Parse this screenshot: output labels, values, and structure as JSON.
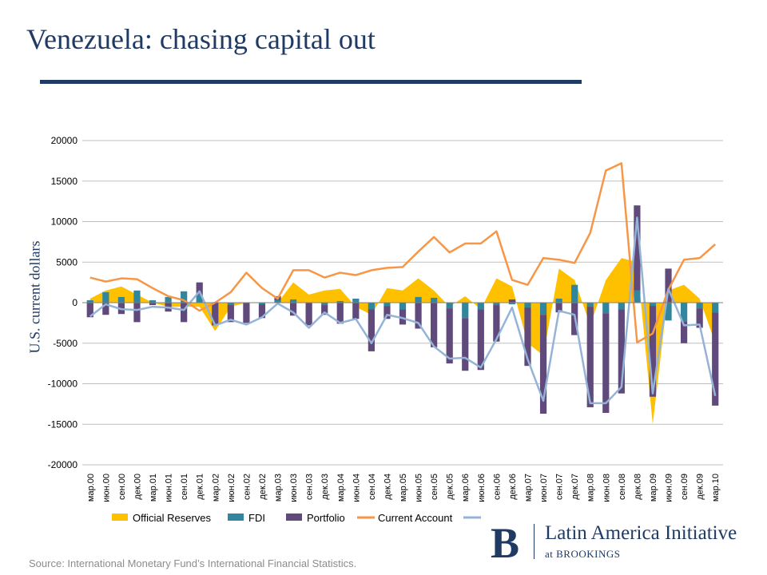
{
  "slide": {
    "title": "Venezuela: chasing capital out",
    "source": "Source: International Monetary Fund’s International Financial Statistics."
  },
  "logo": {
    "mark": "B",
    "name": "Latin America Initiative",
    "sub": "at BROOKINGS"
  },
  "colors": {
    "official_reserves": "#ffc000",
    "fdi": "#31859c",
    "portfolio": "#604a7b",
    "current_account": "#f79646",
    "capital_account": "#95b3d7",
    "title": "#1f3a63"
  },
  "chart_data": {
    "type": "bar",
    "ylabel": "U.S. current dollars",
    "ylim": [
      -20000,
      20000
    ],
    "yticks": [
      20000,
      15000,
      10000,
      5000,
      0,
      -5000,
      -10000,
      -15000,
      -20000
    ],
    "grid": true,
    "legend_position": "bottom",
    "categories": [
      "мар.00",
      "июн.00",
      "сен.00",
      "дек.00",
      "мар.01",
      "июн.01",
      "сен.01",
      "дек.01",
      "мар.02",
      "июн.02",
      "сен.02",
      "дек.02",
      "мар.03",
      "июн.03",
      "сен.03",
      "дек.03",
      "мар.04",
      "июн.04",
      "сен.04",
      "дек.04",
      "мар.05",
      "июн.05",
      "сен.05",
      "дек.05",
      "мар.06",
      "июн.06",
      "сен.06",
      "дек.06",
      "мар.07",
      "июн.07",
      "сен.07",
      "дек.07",
      "мар.08",
      "июн.08",
      "сен.08",
      "дек.08",
      "мар.09",
      "июн.09",
      "сен.09",
      "дек.09",
      "мар.10"
    ],
    "series": [
      {
        "name": "Official Reserves",
        "type": "area",
        "values": [
          500,
          1500,
          2000,
          1000,
          0,
          -500,
          -500,
          -500,
          -3500,
          -500,
          0,
          0,
          0,
          2500,
          1000,
          1500,
          1700,
          -500,
          -1500,
          1800,
          1500,
          3000,
          1500,
          -500,
          800,
          -800,
          3000,
          2000,
          -5000,
          -6500,
          4200,
          2800,
          -2800,
          2800,
          5500,
          5000,
          -15000,
          1500,
          2200,
          500,
          -5000
        ]
      },
      {
        "name": "FDI",
        "type": "bar",
        "values": [
          300,
          1300,
          700,
          1500,
          300,
          700,
          1400,
          1000,
          0,
          -300,
          0,
          -200,
          300,
          400,
          0,
          -300,
          200,
          500,
          -800,
          -400,
          -800,
          700,
          600,
          -700,
          -1900,
          -800,
          -300,
          -200,
          -600,
          -1500,
          500,
          2200,
          -500,
          -1300,
          -800,
          1500,
          -400,
          -2200,
          -2300,
          -700,
          -1200
        ]
      },
      {
        "name": "Portfolio",
        "type": "bar",
        "values": [
          -1800,
          -1500,
          -1400,
          -2400,
          -300,
          -1100,
          -2400,
          1500,
          -2800,
          -2100,
          -2500,
          -1700,
          500,
          -1600,
          -2800,
          -1200,
          -2600,
          -2000,
          -5200,
          -1600,
          -1900,
          -3200,
          -5500,
          -6800,
          -6500,
          -7500,
          -4500,
          400,
          -7200,
          -12200,
          -1200,
          -4000,
          -12400,
          -12300,
          -10400,
          10500,
          -11200,
          4200,
          -2700,
          -2400,
          -11500
        ]
      },
      {
        "name": "Current Account",
        "type": "line",
        "values": [
          3100,
          2600,
          3000,
          2900,
          1800,
          800,
          300,
          -1000,
          0,
          1300,
          3700,
          1800,
          500,
          4000,
          4000,
          3100,
          3700,
          3400,
          4000,
          4300,
          4400,
          6300,
          8100,
          6200,
          7300,
          7300,
          8800,
          2800,
          2200,
          5500,
          5300,
          4900,
          8600,
          16300,
          17200,
          -4900,
          -3800,
          1600,
          5300,
          5500,
          7200
        ]
      },
      {
        "name": "",
        "type": "line",
        "values": [
          -1700,
          -200,
          -800,
          -900,
          -500,
          -600,
          -900,
          1400,
          -2800,
          -2100,
          -2700,
          -1800,
          -100,
          -1200,
          -3100,
          -1200,
          -2500,
          -2000,
          -5000,
          -1500,
          -1900,
          -2500,
          -5400,
          -6900,
          -6800,
          -8000,
          -4500,
          -600,
          -7000,
          -12100,
          -1000,
          -1500,
          -12400,
          -12400,
          -10400,
          10500,
          -11200,
          1700,
          -2800,
          -2700,
          -11500
        ]
      }
    ]
  }
}
